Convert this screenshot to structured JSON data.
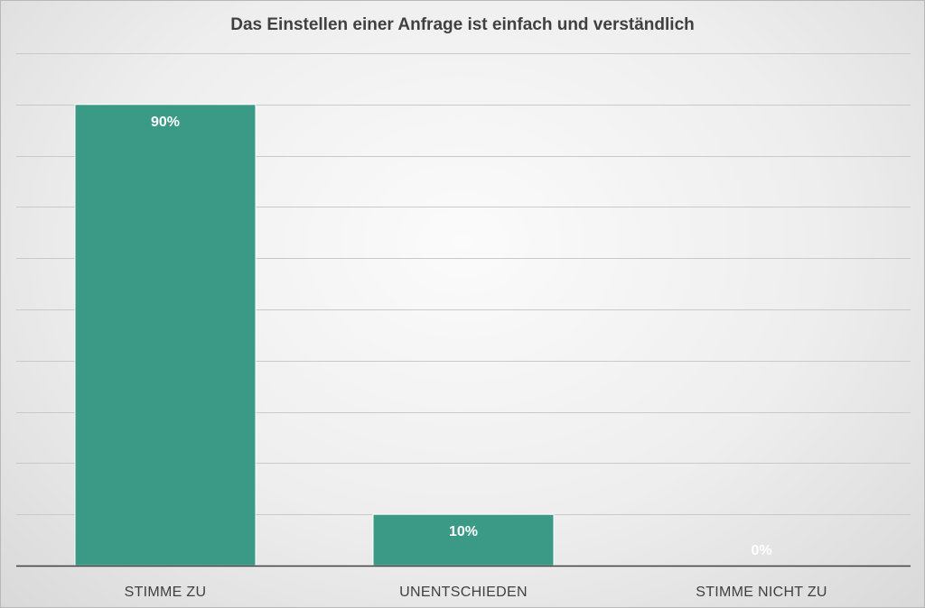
{
  "chart_data": {
    "type": "bar",
    "title": "Das Einstellen einer Anfrage ist einfach und verständlich",
    "categories": [
      "STIMME ZU",
      "UNENTSCHIEDEN",
      "STIMME NICHT ZU"
    ],
    "values": [
      90,
      10,
      0
    ],
    "data_labels": [
      "90%",
      "10%",
      "0%"
    ],
    "ylim": [
      0,
      100
    ],
    "grid": true,
    "legend": "none",
    "bar_color": "#3a9a85",
    "label_color": "#ffffff"
  }
}
